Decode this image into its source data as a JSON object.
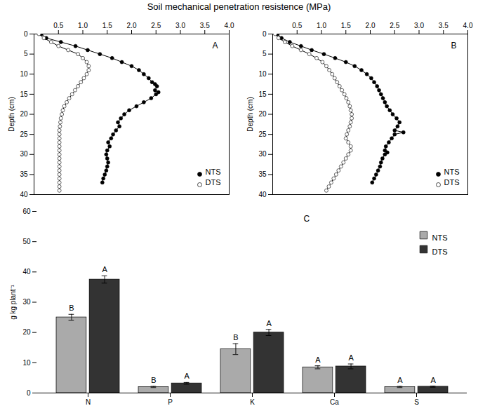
{
  "chart_data": [
    {
      "type": "line",
      "title": "Soil mechanical penetration resistence (MPa)",
      "annotations": [
        "A"
      ],
      "ylabel": "Depth (cm)",
      "xlim": [
        0,
        4.0
      ],
      "xticks": [
        0.5,
        {
          "value": 1.0,
          "label": "1.0"
        },
        1.5,
        {
          "value": 2.0,
          "label": "2.0"
        },
        2.5,
        {
          "value": 3.0,
          "label": "3.0"
        },
        3.5,
        {
          "value": 4.0,
          "label": "4.0"
        }
      ],
      "ylim": [
        40,
        0
      ],
      "yticks": [
        0,
        5,
        10,
        15,
        20,
        25,
        30,
        35,
        40
      ],
      "legend": "lower right",
      "series": [
        {
          "name": "NTS",
          "color": "#000000",
          "marker": "filled_circle",
          "x": [
            0.15,
            0.25,
            0.55,
            0.85,
            1.1,
            1.35,
            1.6,
            1.8,
            2.0,
            2.15,
            2.25,
            2.35,
            2.42,
            2.48,
            2.52,
            2.48,
            2.55,
            2.5,
            2.4,
            2.25,
            2.1,
            1.95,
            1.85,
            1.78,
            1.72,
            1.75,
            1.68,
            1.62,
            1.58,
            1.52,
            1.55,
            1.5,
            1.48,
            1.5,
            1.52,
            1.5,
            1.48,
            1.45,
            1.42,
            1.4
          ],
          "values": [
            0,
            1,
            2,
            3,
            4,
            5,
            6,
            7,
            8,
            9,
            10,
            11,
            12,
            12.5,
            13,
            14,
            14.5,
            15,
            16,
            17,
            18,
            19,
            20,
            21,
            22,
            23,
            24,
            25,
            26,
            27,
            28,
            29,
            30,
            31,
            32,
            33,
            34,
            35,
            36,
            37
          ]
        },
        {
          "name": "DTS",
          "color": "#000000",
          "marker": "open_circle",
          "x": [
            0.1,
            0.2,
            0.35,
            0.5,
            0.7,
            0.9,
            1.0,
            1.08,
            1.12,
            1.12,
            1.08,
            1.02,
            0.96,
            0.9,
            0.84,
            0.78,
            0.72,
            0.67,
            0.62,
            0.59,
            0.57,
            0.55,
            0.54,
            0.53,
            0.52,
            0.52,
            0.52,
            0.52,
            0.52,
            0.52,
            0.52,
            0.52,
            0.52,
            0.52,
            0.52,
            0.52,
            0.52,
            0.52,
            0.52,
            0.52
          ],
          "values": [
            0,
            1,
            2,
            3,
            4,
            5,
            6,
            7,
            8,
            9,
            10,
            11,
            12,
            13,
            14,
            15,
            16,
            17,
            18,
            19,
            20,
            21,
            22,
            23,
            24,
            25,
            26,
            27,
            28,
            29,
            30,
            31,
            32,
            33,
            34,
            35,
            36,
            37,
            38,
            39
          ]
        }
      ]
    },
    {
      "type": "line",
      "annotations": [
        "B"
      ],
      "ylabel": "Depth (cm)",
      "xlim": [
        0,
        4.0
      ],
      "xticks": [
        0.5,
        {
          "value": 1.0,
          "label": "1.0"
        },
        1.5,
        {
          "value": 2.0,
          "label": "2.0"
        },
        2.5,
        {
          "value": 3.0,
          "label": "3.0"
        },
        3.5,
        {
          "value": 4.0,
          "label": "4.0"
        }
      ],
      "ylim": [
        40,
        0
      ],
      "yticks": [
        0,
        5,
        10,
        15,
        20,
        25,
        30,
        35,
        40
      ],
      "legend": "lower right",
      "series": [
        {
          "name": "NTS",
          "color": "#000000",
          "marker": "filled_circle",
          "x": [
            0.1,
            0.18,
            0.35,
            0.58,
            0.8,
            1.05,
            1.28,
            1.5,
            1.68,
            1.82,
            1.93,
            2.02,
            2.08,
            2.14,
            2.18,
            2.22,
            2.26,
            2.3,
            2.34,
            2.4,
            2.46,
            2.54,
            2.6,
            2.56,
            2.5,
            2.68,
            2.5,
            2.44,
            2.38,
            2.32,
            2.3,
            2.35,
            2.3,
            2.25,
            2.22,
            2.2,
            2.16,
            2.12,
            2.08,
            2.04
          ],
          "values": [
            0,
            1,
            2,
            3,
            4,
            5,
            6,
            7,
            8,
            9,
            10,
            11,
            12,
            13,
            14,
            15,
            16,
            17,
            18,
            19,
            20,
            21,
            22,
            23,
            24,
            24.5,
            25,
            26,
            27,
            28,
            29,
            29.5,
            30,
            31,
            32,
            33,
            34,
            35,
            36,
            37
          ]
        },
        {
          "name": "DTS",
          "color": "#000000",
          "marker": "open_circle",
          "x": [
            0.05,
            0.12,
            0.25,
            0.4,
            0.58,
            0.75,
            0.9,
            1.02,
            1.1,
            1.16,
            1.22,
            1.27,
            1.32,
            1.37,
            1.42,
            1.47,
            1.51,
            1.55,
            1.58,
            1.6,
            1.62,
            1.62,
            1.6,
            1.58,
            1.55,
            1.52,
            1.5,
            1.55,
            1.6,
            1.6,
            1.55,
            1.5,
            1.45,
            1.4,
            1.35,
            1.3,
            1.25,
            1.2,
            1.15,
            1.1
          ],
          "values": [
            0,
            1,
            2,
            3,
            4,
            5,
            6,
            7,
            8,
            9,
            10,
            11,
            12,
            13,
            14,
            15,
            16,
            17,
            18,
            19,
            20,
            21,
            22,
            23,
            24,
            25,
            26,
            27,
            28,
            29,
            30,
            31,
            32,
            33,
            34,
            35,
            36,
            37,
            38,
            39
          ]
        }
      ]
    },
    {
      "type": "bar",
      "annotations": [
        "C"
      ],
      "categories": [
        "N",
        "P",
        "K",
        "Ca",
        "S"
      ],
      "ylabel": "g kg plant⁻¹",
      "ylim": [
        0,
        60
      ],
      "yticks": [
        0,
        10,
        20,
        30,
        40,
        50,
        60
      ],
      "legend": "upper right",
      "series": [
        {
          "name": "NTS",
          "color": "#aaaaaa",
          "values": [
            25.0,
            2.0,
            14.5,
            8.5,
            2.0
          ],
          "errors": [
            1.0,
            0.2,
            1.8,
            0.5,
            0.2
          ],
          "labels": [
            "B",
            "B",
            "B",
            "A",
            "A"
          ]
        },
        {
          "name": "DTS",
          "color": "#333333",
          "values": [
            37.5,
            3.2,
            20.0,
            8.8,
            2.1
          ],
          "errors": [
            1.2,
            0.3,
            1.0,
            0.8,
            0.2
          ],
          "labels": [
            "A",
            "A",
            "A",
            "A",
            "A"
          ]
        }
      ]
    }
  ]
}
